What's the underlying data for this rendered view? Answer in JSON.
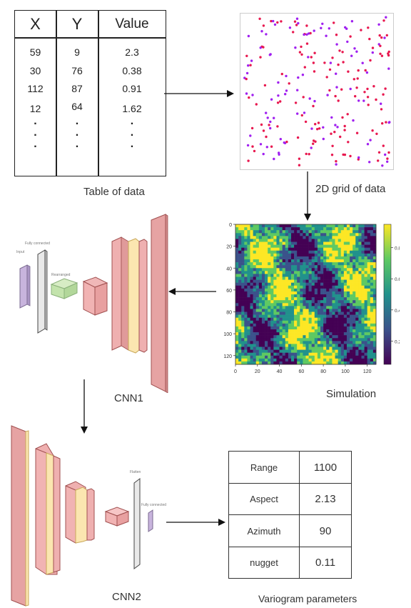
{
  "data_table": {
    "headers": [
      "X",
      "Y",
      "Value"
    ],
    "rows": [
      [
        "59",
        "9",
        "2.3"
      ],
      [
        "30",
        "76",
        "0.38"
      ],
      [
        "112",
        "87",
        "0.91"
      ],
      [
        "12",
        "64",
        "1.62"
      ]
    ],
    "ellipsis": "."
  },
  "labels": {
    "table_of_data": "Table of data",
    "grid_of_data": "2D grid of data",
    "simulation": "Simulation",
    "cnn1": "CNN1",
    "cnn2": "CNN2",
    "variogram_parameters": "Variogram parameters"
  },
  "cnn1_layers": {
    "input": "Input",
    "fully_connected": "Fully connected",
    "rearranged": "Rearranged"
  },
  "cnn2_layers": {
    "flatten": "Flatten",
    "fully_connected": "Fully connected"
  },
  "simulation_plot": {
    "y_ticks": [
      "0",
      "20",
      "40",
      "60",
      "80",
      "100",
      "120"
    ],
    "x_ticks": [
      "0",
      "20",
      "40",
      "60",
      "80",
      "100",
      "120"
    ],
    "colorbar_ticks": [
      "0.8",
      "0.6",
      "0.4",
      "0.2"
    ],
    "colormap": [
      "#440154",
      "#3b528b",
      "#21918c",
      "#5ec962",
      "#fde725"
    ]
  },
  "scatter_colors": [
    "#e8184f",
    "#a020f0"
  ],
  "variogram_table": [
    {
      "name": "Range",
      "value": "1100"
    },
    {
      "name": "Aspect",
      "value": "2.13"
    },
    {
      "name": "Azimuth",
      "value": "90"
    },
    {
      "name": "nugget",
      "value": "0.11"
    }
  ]
}
